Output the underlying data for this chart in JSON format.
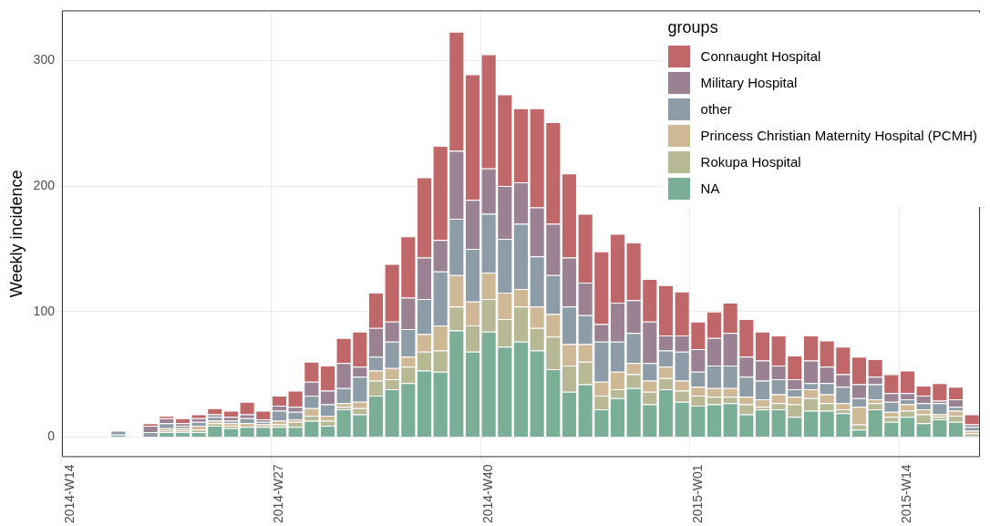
{
  "chart_data": {
    "type": "bar",
    "stacked": true,
    "ylabel": "Weekly incidence",
    "legend_title": "groups",
    "legend": "top right",
    "grid": true,
    "categories": [
      "2014-W14",
      null,
      null,
      null,
      null,
      null,
      null,
      null,
      null,
      null,
      null,
      null,
      null,
      "2014-W27",
      null,
      null,
      null,
      null,
      null,
      null,
      null,
      null,
      null,
      null,
      null,
      null,
      "2014-W40",
      null,
      null,
      null,
      null,
      null,
      null,
      null,
      null,
      null,
      null,
      null,
      null,
      "2015-W01",
      null,
      null,
      null,
      null,
      null,
      null,
      null,
      null,
      null,
      null,
      null,
      null,
      "2015-W14",
      null,
      null,
      null,
      null
    ],
    "ylim": [
      -16,
      340
    ],
    "yticks": [
      0,
      100,
      200,
      300
    ],
    "series": [
      {
        "name": "NA",
        "color": "#7aae96",
        "values": [
          null,
          null,
          null,
          2,
          null,
          0,
          4,
          4,
          4,
          9,
          7,
          8,
          8,
          8,
          8,
          13,
          9,
          22,
          18,
          33,
          38,
          43,
          53,
          52,
          85,
          68,
          84,
          72,
          76,
          69,
          54,
          36,
          42,
          22,
          31,
          39,
          26,
          38,
          28,
          25,
          26,
          27,
          18,
          22,
          22,
          16,
          21,
          21,
          19,
          6,
          22,
          12,
          16,
          11,
          14,
          12,
          1
        ]
      },
      {
        "name": "Rokupa Hospital",
        "color": "#b7b994",
        "values": [
          null,
          null,
          null,
          0,
          null,
          0,
          1,
          1,
          2,
          2,
          2,
          null,
          null,
          2,
          4,
          4,
          4,
          2,
          5,
          12,
          8,
          13,
          15,
          17,
          19,
          21,
          26,
          22,
          28,
          18,
          26,
          21,
          18,
          11,
          7,
          11,
          10,
          9,
          9,
          8,
          6,
          5,
          8,
          2,
          5,
          10,
          10,
          6,
          3,
          4,
          5,
          4,
          5,
          7,
          2,
          5,
          2
        ]
      },
      {
        "name": "Princess Christian Maternity Hospital (PCMH)",
        "color": "#cfb896",
        "values": [
          null,
          null,
          null,
          0,
          null,
          0,
          2,
          2,
          3,
          2,
          2,
          3,
          2,
          3,
          2,
          6,
          4,
          3,
          5,
          8,
          9,
          8,
          14,
          20,
          25,
          19,
          21,
          21,
          14,
          17,
          18,
          17,
          14,
          11,
          14,
          9,
          9,
          9,
          8,
          7,
          7,
          7,
          6,
          6,
          7,
          6,
          7,
          7,
          5,
          14,
          3,
          4,
          5,
          4,
          2,
          4,
          2
        ]
      },
      {
        "name": "other",
        "color": "#8e9ca8",
        "values": [
          null,
          null,
          null,
          3,
          null,
          4,
          4,
          2,
          3,
          3,
          2,
          4,
          2,
          8,
          6,
          10,
          9,
          12,
          20,
          11,
          21,
          22,
          28,
          43,
          45,
          42,
          47,
          43,
          52,
          40,
          31,
          30,
          23,
          32,
          24,
          24,
          14,
          13,
          23,
          12,
          18,
          18,
          16,
          15,
          12,
          6,
          5,
          9,
          13,
          7,
          12,
          8,
          4,
          5,
          9,
          3,
          3
        ]
      },
      {
        "name": "Military Hospital",
        "color": "#9a8292",
        "values": [
          null,
          null,
          null,
          0,
          null,
          5,
          4,
          2,
          3,
          2,
          3,
          3,
          2,
          4,
          4,
          11,
          11,
          20,
          8,
          23,
          16,
          25,
          33,
          25,
          54,
          39,
          36,
          42,
          33,
          39,
          41,
          39,
          26,
          14,
          31,
          26,
          33,
          12,
          13,
          18,
          22,
          26,
          16,
          16,
          11,
          8,
          18,
          13,
          10,
          11,
          6,
          7,
          5,
          6,
          2,
          6,
          2
        ]
      },
      {
        "name": "Connaught Hospital",
        "color": "#c0676a",
        "values": [
          null,
          null,
          null,
          0,
          null,
          2,
          2,
          4,
          3,
          5,
          5,
          10,
          7,
          8,
          13,
          16,
          20,
          20,
          28,
          28,
          46,
          49,
          64,
          75,
          95,
          100,
          91,
          73,
          59,
          79,
          81,
          67,
          55,
          58,
          55,
          46,
          34,
          40,
          35,
          22,
          21,
          24,
          30,
          23,
          24,
          19,
          20,
          21,
          22,
          22,
          14,
          15,
          18,
          8,
          14,
          10,
          8
        ]
      }
    ]
  }
}
